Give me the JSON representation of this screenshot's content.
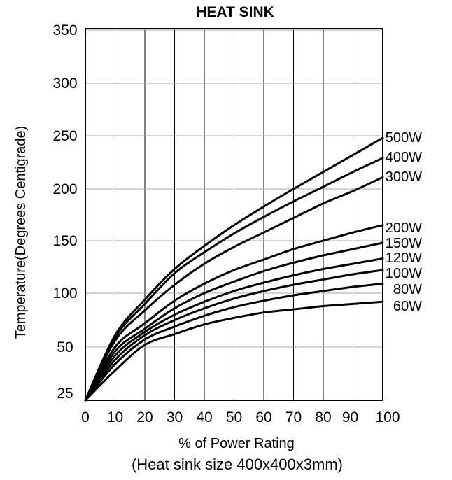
{
  "chart_data": {
    "type": "line",
    "title": "HEAT SINK",
    "xlabel": "% of Power Rating",
    "xlabel_note": "(Heat sink size 400x400x3mm)",
    "ylabel": "Temperature(Degrees Centigrade)",
    "xlim": [
      0,
      100
    ],
    "ylim": [
      25,
      350
    ],
    "x_ticks": [
      "0",
      "10",
      "20",
      "30",
      "40",
      "50",
      "60",
      "70",
      "80",
      "90",
      "100"
    ],
    "y_ticks": [
      "25",
      "50",
      "100",
      "150",
      "200",
      "250",
      "300",
      "350"
    ],
    "grid": true,
    "x": [
      0,
      10,
      20,
      30,
      40,
      50,
      60,
      70,
      80,
      90,
      100
    ],
    "series": [
      {
        "name": "500W",
        "values": [
          25,
          61,
          94,
          123,
          145,
          165,
          183,
          200,
          216,
          232,
          248
        ]
      },
      {
        "name": "400W",
        "values": [
          25,
          59,
          90,
          119,
          139,
          157,
          173,
          188,
          202,
          216,
          229
        ]
      },
      {
        "name": "300W",
        "values": [
          25,
          56,
          84,
          108,
          128,
          144,
          158,
          172,
          186,
          198,
          211
        ]
      },
      {
        "name": "200W",
        "values": [
          25,
          50,
          72,
          93,
          109,
          122,
          132,
          142,
          150,
          158,
          165
        ]
      },
      {
        "name": "150W",
        "values": [
          25,
          48,
          67,
          86,
          100,
          111,
          121,
          129,
          136,
          142,
          148
        ]
      },
      {
        "name": "120W",
        "values": [
          25,
          46,
          64,
          80,
          92,
          102,
          110,
          117,
          123,
          128,
          133
        ]
      },
      {
        "name": "100W",
        "values": [
          25,
          44,
          61,
          75,
          86,
          95,
          102,
          108,
          113,
          118,
          122
        ]
      },
      {
        "name": "80W",
        "values": [
          25,
          42,
          57,
          69,
          79,
          87,
          93,
          98,
          102,
          106,
          109
        ]
      },
      {
        "name": "60W",
        "values": [
          25,
          39,
          52,
          62,
          71,
          77,
          82,
          85,
          88,
          90,
          92
        ]
      }
    ]
  }
}
